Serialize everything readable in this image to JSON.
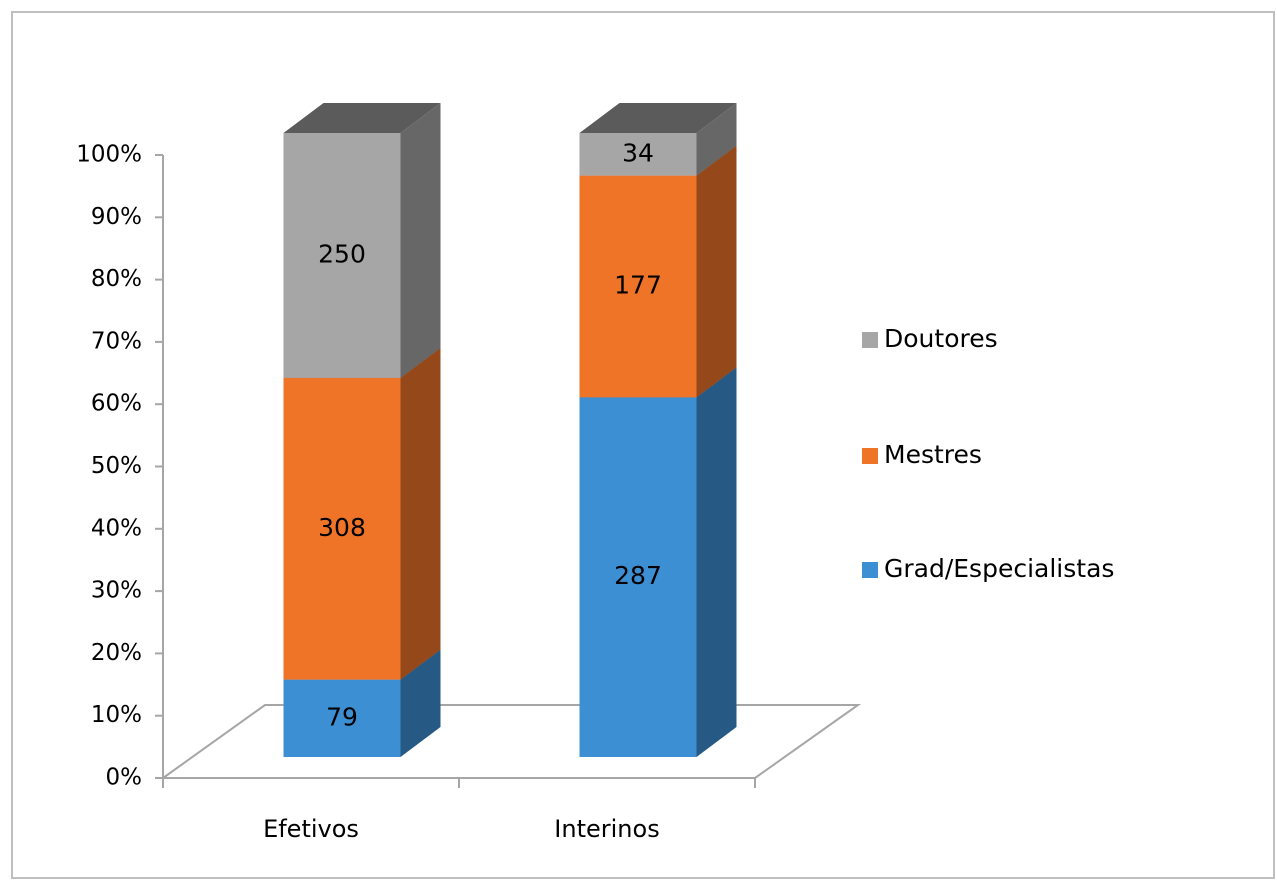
{
  "chart_data": {
    "type": "bar",
    "stacking": "percent",
    "three_d": true,
    "categories": [
      "Efetivos",
      "Interinos"
    ],
    "series": [
      {
        "name": "Grad/Especialistas",
        "color": "#3d8fd4",
        "values": [
          79,
          287
        ]
      },
      {
        "name": "Mestres",
        "color": "#f07428",
        "values": [
          308,
          177
        ]
      },
      {
        "name": "Doutores",
        "color": "#a6a6a6",
        "values": [
          250,
          34
        ]
      }
    ],
    "ylim": [
      0,
      100
    ],
    "yticks": [
      {
        "value": 0,
        "label": "0%"
      },
      {
        "value": 10,
        "label": "10%"
      },
      {
        "value": 20,
        "label": "20%"
      },
      {
        "value": 30,
        "label": "30%"
      },
      {
        "value": 40,
        "label": "40%"
      },
      {
        "value": 50,
        "label": "50%"
      },
      {
        "value": 60,
        "label": "60%"
      },
      {
        "value": 70,
        "label": "70%"
      },
      {
        "value": 80,
        "label": "80%"
      },
      {
        "value": 90,
        "label": "90%"
      },
      {
        "value": 100,
        "label": "100%"
      }
    ],
    "legend": "right",
    "data_labels": true
  }
}
